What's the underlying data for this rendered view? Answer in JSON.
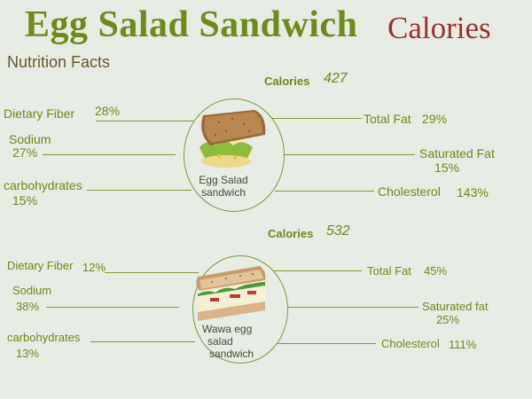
{
  "header": {
    "title": "Egg Salad Sandwich",
    "title_suffix": "Calories",
    "subtitle": "Nutrition Facts"
  },
  "colors": {
    "accent": "#6d8b1c",
    "title_suffix": "#9b3030",
    "background": "#e6ebe3"
  },
  "items": [
    {
      "name_line1": "Egg Salad",
      "name_line2": "sandwich",
      "calories_label": "Calories",
      "calories": "427",
      "dietary_fiber_label": "Dietary Fiber",
      "dietary_fiber": "28%",
      "sodium_label": "Sodium",
      "sodium": "27%",
      "carbohydrates_label": "carbohydrates",
      "carbohydrates": "15%",
      "total_fat_label": "Total Fat",
      "total_fat": "29%",
      "saturated_fat_label": "Saturated Fat",
      "saturated_fat": "15%",
      "cholesterol_label": "Cholesterol",
      "cholesterol": "143%"
    },
    {
      "name_line1": "Wawa egg",
      "name_line2": "salad",
      "name_line3": "sandwich",
      "calories_label": "Calories",
      "calories": "532",
      "dietary_fiber_label": "Dietary Fiber",
      "dietary_fiber": "12%",
      "sodium_label": "Sodium",
      "sodium": "38%",
      "carbohydrates_label": "carbohydrates",
      "carbohydrates": "13%",
      "total_fat_label": "Total Fat",
      "total_fat": "45%",
      "saturated_fat_label": "Saturated fat",
      "saturated_fat": "25%",
      "cholesterol_label": "Cholesterol",
      "cholesterol": "111%"
    }
  ]
}
